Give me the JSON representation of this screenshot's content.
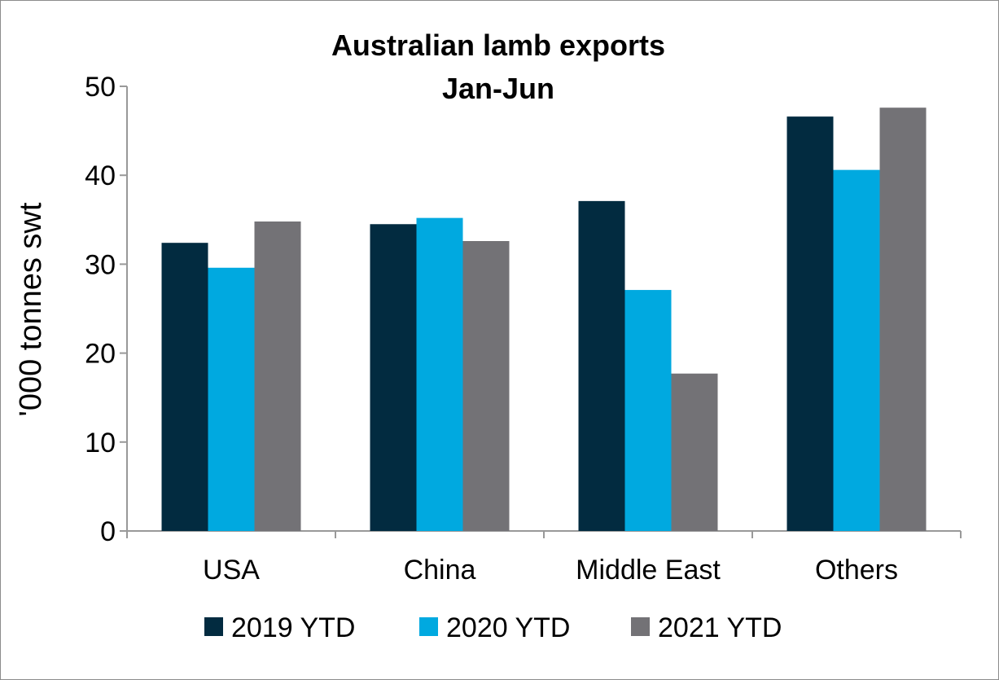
{
  "chart_data": {
    "type": "bar",
    "title": [
      "Australian lamb exports",
      "Jan-Jun"
    ],
    "ylabel": "'000 tonnes swt",
    "xlabel": "",
    "categories": [
      "USA",
      "China",
      "Middle East",
      "Others"
    ],
    "series": [
      {
        "name": "2019 YTD",
        "color": "#022b40",
        "values": [
          32.4,
          34.5,
          37.1,
          46.6
        ]
      },
      {
        "name": "2020 YTD",
        "color": "#00a9e0",
        "values": [
          29.6,
          35.2,
          27.1,
          40.6
        ]
      },
      {
        "name": "2021 YTD",
        "color": "#737276",
        "values": [
          34.8,
          32.6,
          17.7,
          47.6
        ]
      }
    ],
    "ylim": [
      0,
      50
    ],
    "yticks": [
      "0",
      "10",
      "20",
      "30",
      "40",
      "50"
    ],
    "grid": false,
    "legend": "bottom"
  }
}
